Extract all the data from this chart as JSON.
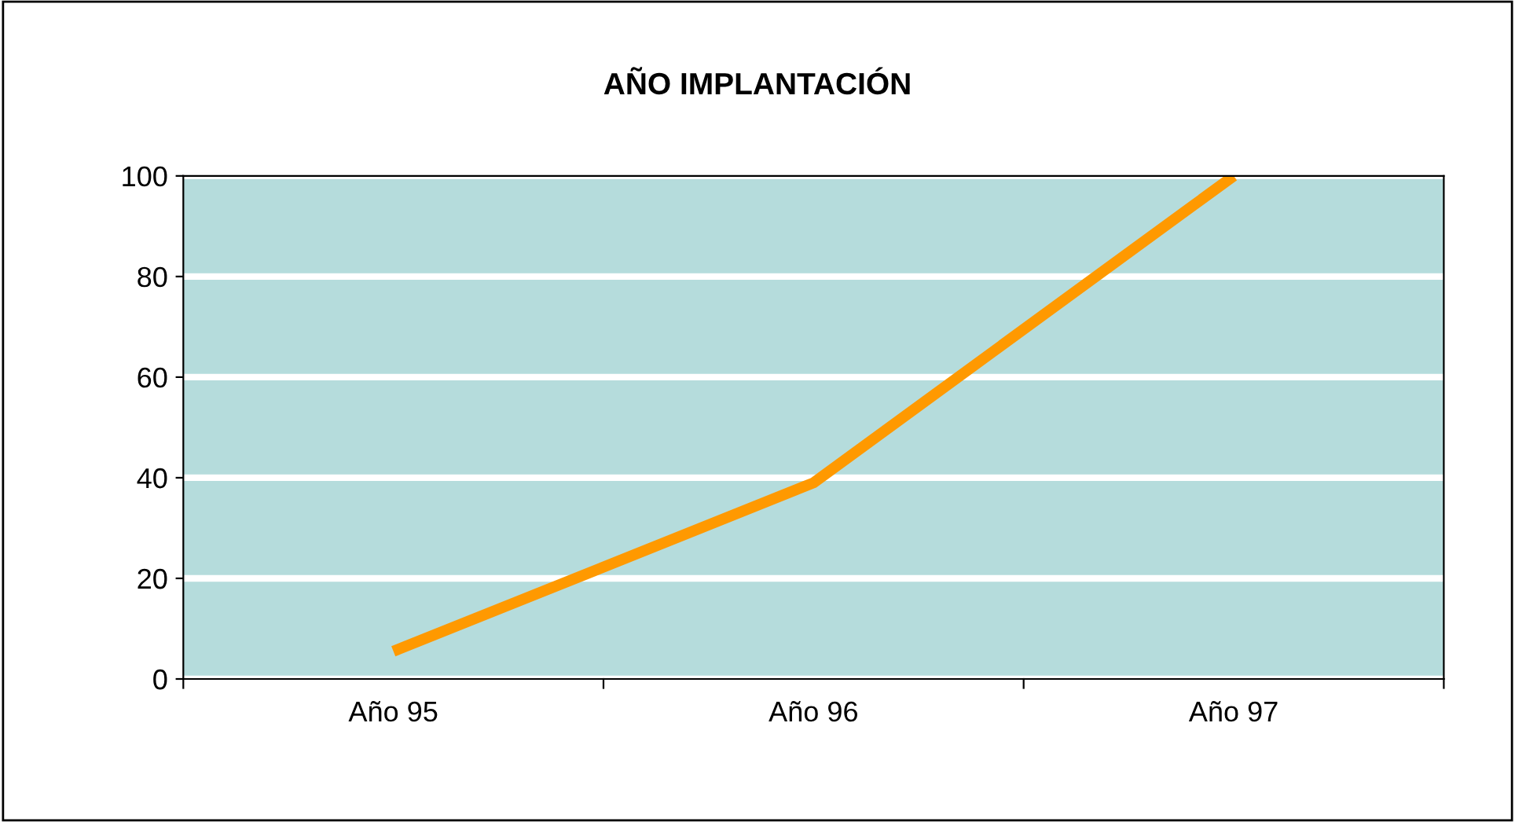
{
  "chart_data": {
    "type": "line",
    "title": "AÑO IMPLANTACIÓN",
    "categories": [
      "Año 95",
      "Año 96",
      "Año 97"
    ],
    "series": [
      {
        "color": "#ff9900",
        "values": [
          5.5,
          39,
          100
        ]
      }
    ],
    "ylim": [
      0,
      100
    ],
    "yticks": [
      0,
      20,
      40,
      60,
      80,
      100
    ],
    "grid": "y",
    "legend": false,
    "marker": "none",
    "line_style": "solid"
  }
}
